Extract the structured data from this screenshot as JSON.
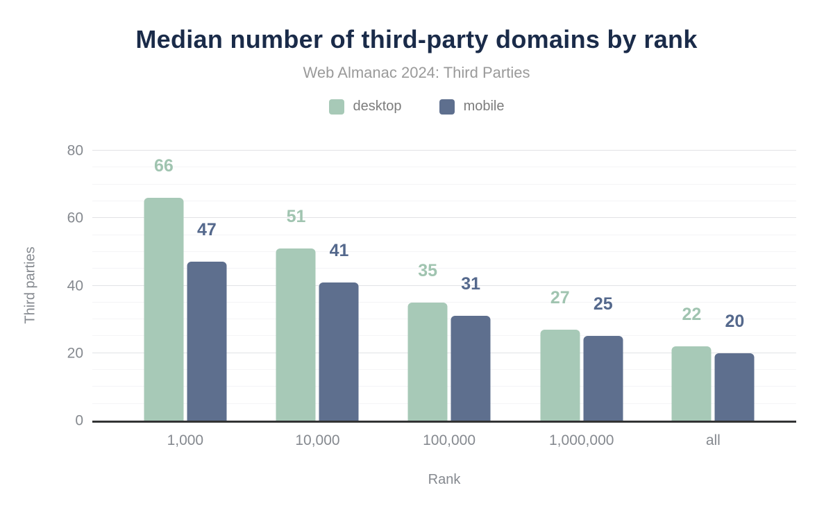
{
  "header": {
    "title": "Median number of third-party domains by rank",
    "subtitle": "Web Almanac 2024: Third Parties"
  },
  "chart_data": {
    "type": "bar",
    "title": "Median number of third-party domains by rank",
    "subtitle": "Web Almanac 2024: Third Parties",
    "categories": [
      "1,000",
      "10,000",
      "100,000",
      "1,000,000",
      "all"
    ],
    "series": [
      {
        "name": "desktop",
        "color": "#a7c9b7",
        "label_color": "#a0c4b0",
        "values": [
          66,
          51,
          35,
          27,
          22
        ]
      },
      {
        "name": "mobile",
        "color": "#5e6f8e",
        "label_color": "#54688c",
        "values": [
          47,
          41,
          31,
          25,
          20
        ]
      }
    ],
    "xlabel": "Rank",
    "ylabel": "Third parties",
    "ylim": [
      0,
      80
    ],
    "y_ticks": [
      0,
      20,
      40,
      60,
      80
    ],
    "y_minor_step": 5,
    "grid": true,
    "legend_position": "top",
    "value_labels_shown": true
  }
}
